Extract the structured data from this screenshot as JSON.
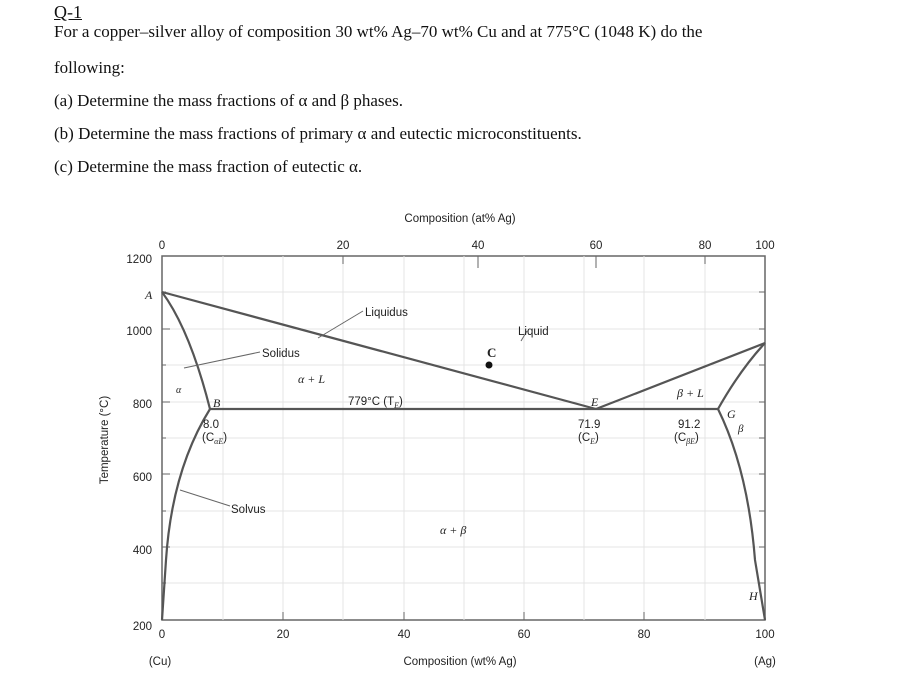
{
  "question": {
    "id": "Q-1",
    "intro_line1": "For a copper–silver alloy of composition 30 wt% Ag–70 wt% Cu and at 775°C (1048 K) do the",
    "intro_line2": "following:",
    "part_a": "(a) Determine the mass fractions of α and β phases.",
    "part_b": "(b) Determine the mass fractions of primary α and eutectic microconstituents.",
    "part_c": "(c) Determine the mass fraction of eutectic α."
  },
  "diagram": {
    "top_axis_title": "Composition (at% Ag)",
    "top_ticks": [
      "0",
      "20",
      "40",
      "60",
      "80",
      "100"
    ],
    "left_axis_title": "Temperature (°C)",
    "left_ticks": [
      "1200",
      "1000",
      "800",
      "600",
      "400",
      "200"
    ],
    "bottom_ticks": [
      "0",
      "20",
      "40",
      "60",
      "80",
      "100"
    ],
    "bottom_axis_title": "Composition (wt% Ag)",
    "left_end_label": "(Cu)",
    "right_end_label": "(Ag)",
    "point_A": "A",
    "point_B": "B",
    "point_C": "C",
    "point_E": "E",
    "point_G": "G",
    "point_H": "H",
    "label_liquidus": "Liquidus",
    "label_liquid": "Liquid",
    "label_solidus": "Solidus",
    "label_solvus": "Solvus",
    "label_alpha": "α",
    "label_alpha_L": "α + L",
    "label_beta_L": "β + L",
    "label_beta": "β",
    "label_alpha_beta": "α + β",
    "eutectic_temp": "779°C (T",
    "eutectic_temp_sub": "E",
    "eutectic_temp_end": ")",
    "cae_value": "8.0",
    "cae_label": "(C",
    "cae_sub": "αE",
    "ce_value": "71.9",
    "ce_label": "(C",
    "ce_sub": "E",
    "cbe_value": "91.2",
    "cbe_label": "(C",
    "cbe_sub": "βE"
  }
}
